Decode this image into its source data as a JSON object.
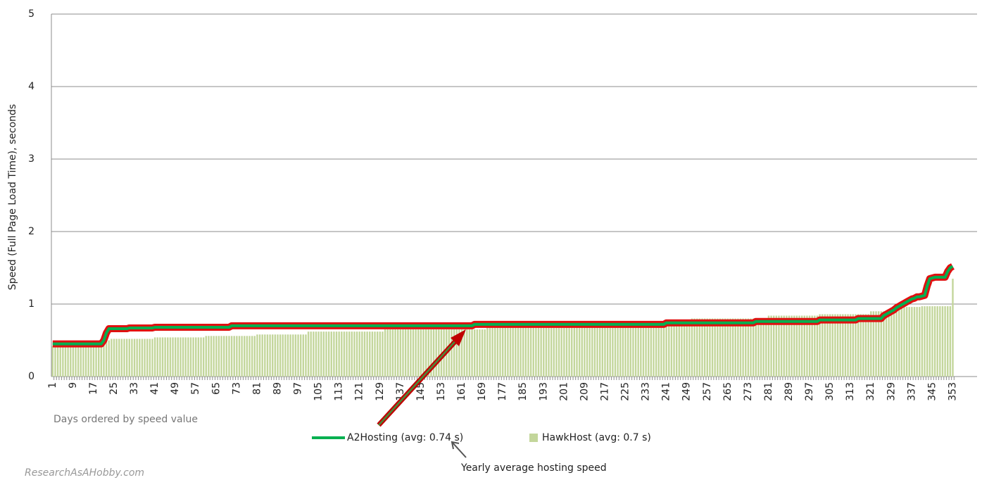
{
  "chart_data": {
    "type": "bar_line",
    "ylabel": "Speed (Full Page Load Time), seconds",
    "xlabel": "Days ordered by speed value",
    "annotations": [
      "Yearly average hosting speed",
      "ResearchAsAHobby.com"
    ],
    "xlim": [
      0.5,
      362.5
    ],
    "xticks": [
      1,
      9,
      17,
      25,
      33,
      41,
      49,
      57,
      65,
      73,
      81,
      89,
      97,
      105,
      113,
      121,
      129,
      137,
      145,
      153,
      161,
      169,
      177,
      185,
      193,
      201,
      209,
      217,
      225,
      233,
      241,
      249,
      257,
      265,
      273,
      281,
      289,
      297,
      305,
      313,
      321,
      329,
      337,
      345,
      353
    ],
    "ylim": [
      0,
      5
    ],
    "yticks": [
      0,
      1,
      2,
      3,
      4,
      5
    ],
    "grid": true,
    "x": [
      1,
      2,
      3,
      4,
      5,
      6,
      7,
      8,
      9,
      10,
      11,
      12,
      13,
      14,
      15,
      16,
      17,
      18,
      19,
      20,
      21,
      22,
      23,
      24,
      25,
      26,
      27,
      28,
      29,
      30,
      31,
      32,
      33,
      34,
      35,
      36,
      37,
      38,
      39,
      40,
      41,
      42,
      43,
      44,
      45,
      46,
      47,
      48,
      49,
      50,
      51,
      52,
      53,
      54,
      55,
      56,
      57,
      58,
      59,
      60,
      61,
      62,
      63,
      64,
      65,
      66,
      67,
      68,
      69,
      70,
      71,
      72,
      73,
      74,
      75,
      76,
      77,
      78,
      79,
      80,
      81,
      82,
      83,
      84,
      85,
      86,
      87,
      88,
      89,
      90,
      91,
      92,
      93,
      94,
      95,
      96,
      97,
      98,
      99,
      100,
      101,
      102,
      103,
      104,
      105,
      106,
      107,
      108,
      109,
      110,
      111,
      112,
      113,
      114,
      115,
      116,
      117,
      118,
      119,
      120,
      121,
      122,
      123,
      124,
      125,
      126,
      127,
      128,
      129,
      130,
      131,
      132,
      133,
      134,
      135,
      136,
      137,
      138,
      139,
      140,
      141,
      142,
      143,
      144,
      145,
      146,
      147,
      148,
      149,
      150,
      151,
      152,
      153,
      154,
      155,
      156,
      157,
      158,
      159,
      160,
      161,
      162,
      163,
      164,
      165,
      166,
      167,
      168,
      169,
      170,
      171,
      172,
      173,
      174,
      175,
      176,
      177,
      178,
      179,
      180,
      181,
      182,
      183,
      184,
      185,
      186,
      187,
      188,
      189,
      190,
      191,
      192,
      193,
      194,
      195,
      196,
      197,
      198,
      199,
      200,
      201,
      202,
      203,
      204,
      205,
      206,
      207,
      208,
      209,
      210,
      211,
      212,
      213,
      214,
      215,
      216,
      217,
      218,
      219,
      220,
      221,
      222,
      223,
      224,
      225,
      226,
      227,
      228,
      229,
      230,
      231,
      232,
      233,
      234,
      235,
      236,
      237,
      238,
      239,
      240,
      241,
      242,
      243,
      244,
      245,
      246,
      247,
      248,
      249,
      250,
      251,
      252,
      253,
      254,
      255,
      256,
      257,
      258,
      259,
      260,
      261,
      262,
      263,
      264,
      265,
      266,
      267,
      268,
      269,
      270,
      271,
      272,
      273,
      274,
      275,
      276,
      277,
      278,
      279,
      280,
      281,
      282,
      283,
      284,
      285,
      286,
      287,
      288,
      289,
      290,
      291,
      292,
      293,
      294,
      295,
      296,
      297,
      298,
      299,
      300,
      301,
      302,
      303,
      304,
      305,
      306,
      307,
      308,
      309,
      310,
      311,
      312,
      313,
      314,
      315,
      316,
      317,
      318,
      319,
      320,
      321,
      322,
      323,
      324,
      325,
      326,
      327,
      328,
      329,
      330,
      331,
      332,
      333,
      334,
      335,
      336,
      337,
      338,
      339,
      340,
      341,
      342,
      343,
      344,
      345,
      346,
      347,
      348,
      349,
      350,
      351,
      352,
      353
    ],
    "series": [
      {
        "name": "A2Hosting (avg: 0.74 s)",
        "kind": "line",
        "color": "#00b050",
        "outline": "#e01010",
        "values": [
          0.45,
          0.45,
          0.45,
          0.45,
          0.45,
          0.45,
          0.45,
          0.45,
          0.45,
          0.45,
          0.45,
          0.45,
          0.45,
          0.45,
          0.45,
          0.45,
          0.45,
          0.45,
          0.45,
          0.45,
          0.5,
          0.6,
          0.66,
          0.66,
          0.66,
          0.66,
          0.66,
          0.66,
          0.66,
          0.66,
          0.67,
          0.67,
          0.67,
          0.67,
          0.67,
          0.67,
          0.67,
          0.67,
          0.67,
          0.67,
          0.68,
          0.68,
          0.68,
          0.68,
          0.68,
          0.68,
          0.68,
          0.68,
          0.68,
          0.68,
          0.68,
          0.68,
          0.68,
          0.68,
          0.68,
          0.68,
          0.68,
          0.68,
          0.68,
          0.68,
          0.68,
          0.68,
          0.68,
          0.68,
          0.68,
          0.68,
          0.68,
          0.68,
          0.68,
          0.68,
          0.7,
          0.7,
          0.7,
          0.7,
          0.7,
          0.7,
          0.7,
          0.7,
          0.7,
          0.7,
          0.7,
          0.7,
          0.7,
          0.7,
          0.7,
          0.7,
          0.7,
          0.7,
          0.7,
          0.7,
          0.7,
          0.7,
          0.7,
          0.7,
          0.7,
          0.7,
          0.7,
          0.7,
          0.7,
          0.7,
          0.7,
          0.7,
          0.7,
          0.7,
          0.7,
          0.7,
          0.7,
          0.7,
          0.7,
          0.7,
          0.7,
          0.7,
          0.7,
          0.7,
          0.7,
          0.7,
          0.7,
          0.7,
          0.7,
          0.7,
          0.7,
          0.7,
          0.7,
          0.7,
          0.7,
          0.7,
          0.7,
          0.7,
          0.7,
          0.7,
          0.7,
          0.7,
          0.7,
          0.7,
          0.7,
          0.7,
          0.7,
          0.7,
          0.7,
          0.7,
          0.7,
          0.7,
          0.7,
          0.7,
          0.7,
          0.7,
          0.7,
          0.7,
          0.7,
          0.7,
          0.7,
          0.7,
          0.7,
          0.7,
          0.7,
          0.7,
          0.7,
          0.7,
          0.7,
          0.7,
          0.7,
          0.7,
          0.7,
          0.7,
          0.7,
          0.72,
          0.72,
          0.72,
          0.72,
          0.72,
          0.72,
          0.72,
          0.72,
          0.72,
          0.72,
          0.72,
          0.72,
          0.72,
          0.72,
          0.72,
          0.72,
          0.72,
          0.72,
          0.72,
          0.72,
          0.72,
          0.72,
          0.72,
          0.72,
          0.72,
          0.72,
          0.72,
          0.72,
          0.72,
          0.72,
          0.72,
          0.72,
          0.72,
          0.72,
          0.72,
          0.72,
          0.72,
          0.72,
          0.72,
          0.72,
          0.72,
          0.72,
          0.72,
          0.72,
          0.72,
          0.72,
          0.72,
          0.72,
          0.72,
          0.72,
          0.72,
          0.72,
          0.72,
          0.72,
          0.72,
          0.72,
          0.72,
          0.72,
          0.72,
          0.72,
          0.72,
          0.72,
          0.72,
          0.72,
          0.72,
          0.72,
          0.72,
          0.72,
          0.72,
          0.72,
          0.72,
          0.72,
          0.72,
          0.72,
          0.72,
          0.74,
          0.74,
          0.74,
          0.74,
          0.74,
          0.74,
          0.74,
          0.74,
          0.74,
          0.74,
          0.74,
          0.74,
          0.74,
          0.74,
          0.74,
          0.74,
          0.74,
          0.74,
          0.74,
          0.74,
          0.74,
          0.74,
          0.74,
          0.74,
          0.74,
          0.74,
          0.74,
          0.74,
          0.74,
          0.74,
          0.74,
          0.74,
          0.74,
          0.74,
          0.74,
          0.76,
          0.76,
          0.76,
          0.76,
          0.76,
          0.76,
          0.76,
          0.76,
          0.76,
          0.76,
          0.76,
          0.76,
          0.76,
          0.76,
          0.76,
          0.76,
          0.76,
          0.76,
          0.76,
          0.76,
          0.76,
          0.76,
          0.76,
          0.76,
          0.76,
          0.78,
          0.78,
          0.78,
          0.78,
          0.78,
          0.78,
          0.78,
          0.78,
          0.78,
          0.78,
          0.78,
          0.78,
          0.78,
          0.78,
          0.78,
          0.8,
          0.8,
          0.8,
          0.8,
          0.8,
          0.8,
          0.8,
          0.8,
          0.8,
          0.8,
          0.84,
          0.86,
          0.88,
          0.9,
          0.92,
          0.95,
          0.97,
          0.99,
          1.01,
          1.03,
          1.05,
          1.07,
          1.08,
          1.1,
          1.1,
          1.11,
          1.12,
          1.25,
          1.35,
          1.36,
          1.37,
          1.37,
          1.37,
          1.37,
          1.37,
          1.45,
          1.5,
          1.52
        ]
      },
      {
        "name": "HawkHost (avg: 0.7 s)",
        "kind": "bar",
        "color": "#c3d69b",
        "values": [
          0.42,
          0.42,
          0.42,
          0.42,
          0.42,
          0.42,
          0.42,
          0.42,
          0.42,
          0.42,
          0.42,
          0.42,
          0.42,
          0.42,
          0.42,
          0.42,
          0.42,
          0.42,
          0.42,
          0.42,
          0.45,
          0.48,
          0.5,
          0.52,
          0.52,
          0.52,
          0.52,
          0.52,
          0.52,
          0.52,
          0.52,
          0.52,
          0.52,
          0.52,
          0.52,
          0.52,
          0.52,
          0.52,
          0.52,
          0.52,
          0.54,
          0.54,
          0.54,
          0.54,
          0.54,
          0.54,
          0.54,
          0.54,
          0.54,
          0.54,
          0.54,
          0.54,
          0.54,
          0.54,
          0.54,
          0.54,
          0.54,
          0.54,
          0.54,
          0.54,
          0.56,
          0.56,
          0.56,
          0.56,
          0.56,
          0.56,
          0.56,
          0.56,
          0.56,
          0.56,
          0.56,
          0.56,
          0.56,
          0.56,
          0.56,
          0.56,
          0.56,
          0.56,
          0.56,
          0.56,
          0.58,
          0.58,
          0.58,
          0.58,
          0.58,
          0.58,
          0.58,
          0.58,
          0.58,
          0.58,
          0.58,
          0.58,
          0.58,
          0.58,
          0.58,
          0.58,
          0.58,
          0.58,
          0.58,
          0.58,
          0.62,
          0.62,
          0.62,
          0.62,
          0.62,
          0.62,
          0.62,
          0.62,
          0.62,
          0.62,
          0.62,
          0.62,
          0.62,
          0.62,
          0.62,
          0.62,
          0.62,
          0.62,
          0.62,
          0.62,
          0.62,
          0.62,
          0.62,
          0.62,
          0.62,
          0.62,
          0.62,
          0.62,
          0.62,
          0.62,
          0.65,
          0.65,
          0.65,
          0.65,
          0.65,
          0.65,
          0.65,
          0.65,
          0.65,
          0.65,
          0.65,
          0.65,
          0.65,
          0.65,
          0.65,
          0.65,
          0.65,
          0.65,
          0.65,
          0.65,
          0.65,
          0.65,
          0.65,
          0.65,
          0.65,
          0.65,
          0.65,
          0.65,
          0.65,
          0.65,
          0.65,
          0.65,
          0.65,
          0.65,
          0.65,
          0.65,
          0.65,
          0.65,
          0.65,
          0.65,
          0.68,
          0.68,
          0.68,
          0.68,
          0.68,
          0.68,
          0.68,
          0.68,
          0.68,
          0.68,
          0.68,
          0.68,
          0.68,
          0.68,
          0.68,
          0.68,
          0.68,
          0.68,
          0.68,
          0.68,
          0.68,
          0.68,
          0.68,
          0.68,
          0.68,
          0.68,
          0.68,
          0.68,
          0.68,
          0.68,
          0.68,
          0.68,
          0.68,
          0.68,
          0.68,
          0.68,
          0.68,
          0.68,
          0.68,
          0.68,
          0.68,
          0.68,
          0.68,
          0.68,
          0.68,
          0.68,
          0.68,
          0.68,
          0.68,
          0.68,
          0.72,
          0.72,
          0.72,
          0.72,
          0.72,
          0.72,
          0.72,
          0.72,
          0.72,
          0.72,
          0.72,
          0.72,
          0.72,
          0.72,
          0.72,
          0.72,
          0.72,
          0.72,
          0.72,
          0.72,
          0.72,
          0.72,
          0.72,
          0.72,
          0.72,
          0.72,
          0.72,
          0.72,
          0.72,
          0.72,
          0.8,
          0.8,
          0.8,
          0.8,
          0.8,
          0.8,
          0.8,
          0.8,
          0.8,
          0.8,
          0.8,
          0.8,
          0.8,
          0.8,
          0.8,
          0.8,
          0.8,
          0.8,
          0.8,
          0.8,
          0.8,
          0.8,
          0.8,
          0.8,
          0.8,
          0.8,
          0.8,
          0.8,
          0.8,
          0.8,
          0.84,
          0.84,
          0.84,
          0.84,
          0.84,
          0.84,
          0.84,
          0.84,
          0.84,
          0.84,
          0.84,
          0.84,
          0.84,
          0.84,
          0.84,
          0.84,
          0.84,
          0.84,
          0.84,
          0.84,
          0.86,
          0.86,
          0.86,
          0.86,
          0.86,
          0.86,
          0.86,
          0.86,
          0.86,
          0.86,
          0.86,
          0.86,
          0.86,
          0.86,
          0.86,
          0.86,
          0.86,
          0.86,
          0.86,
          0.86,
          0.9,
          0.9,
          0.9,
          0.9,
          0.9,
          0.9,
          0.9,
          0.9,
          0.9,
          0.9,
          0.96,
          0.96,
          0.96,
          0.96,
          0.96,
          0.96,
          0.96,
          0.96,
          0.96,
          0.96,
          0.97,
          0.97,
          0.97,
          0.97,
          0.97,
          0.97,
          0.97,
          0.97,
          0.97,
          0.97,
          0.97,
          0.97,
          1.35
        ]
      }
    ]
  }
}
